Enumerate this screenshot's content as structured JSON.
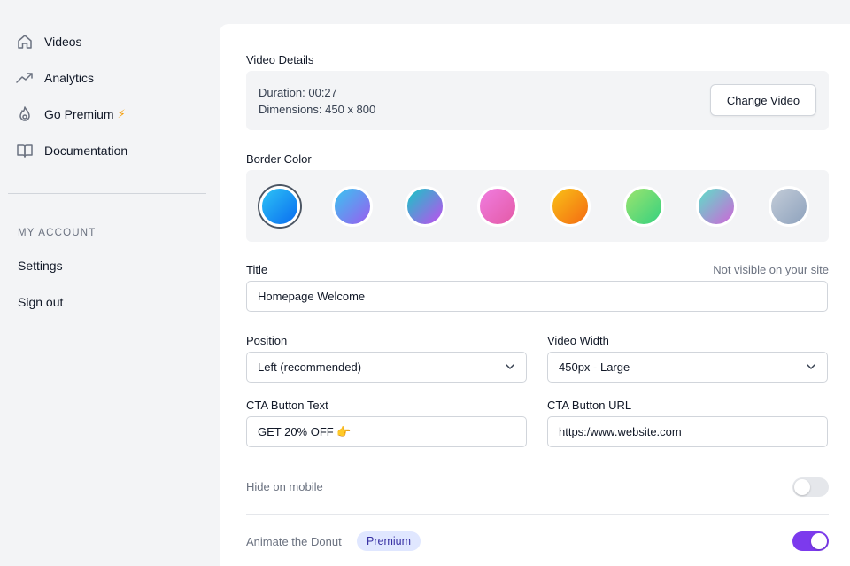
{
  "sidebar": {
    "nav": [
      {
        "label": "Videos",
        "icon": "home-icon"
      },
      {
        "label": "Analytics",
        "icon": "trending-up-icon"
      },
      {
        "label": "Go Premium",
        "icon": "fire-icon",
        "suffix": "⚡"
      },
      {
        "label": "Documentation",
        "icon": "book-icon"
      }
    ],
    "account_title": "MY ACCOUNT",
    "settings": "Settings",
    "signout": "Sign out"
  },
  "main": {
    "video_details": {
      "heading": "Video Details",
      "duration": "Duration: 00:27",
      "dimensions": "Dimensions: 450 x 800",
      "change_button": "Change Video"
    },
    "border_color": {
      "heading": "Border Color",
      "swatches": [
        {
          "name": "blue",
          "from": "#2dc3f5",
          "to": "#0a6cf0",
          "selected": true
        },
        {
          "name": "blue-violet",
          "from": "#38c5f0",
          "to": "#9b5cf0",
          "selected": false
        },
        {
          "name": "teal-purple",
          "from": "#14c8c4",
          "to": "#c24cf0",
          "selected": false
        },
        {
          "name": "pink",
          "from": "#f07de0",
          "to": "#e45aa6",
          "selected": false
        },
        {
          "name": "orange",
          "from": "#f9c117",
          "to": "#f46a12",
          "selected": false
        },
        {
          "name": "green",
          "from": "#9be46e",
          "to": "#36d17f",
          "selected": false
        },
        {
          "name": "teal-pink",
          "from": "#5ce0c8",
          "to": "#d064d8",
          "selected": false
        },
        {
          "name": "gray-blue",
          "from": "#c3ccd8",
          "to": "#8ea2bd",
          "selected": false
        }
      ]
    },
    "title": {
      "label": "Title",
      "hint": "Not visible on your site",
      "value": "Homepage Welcome"
    },
    "position": {
      "label": "Position",
      "value": "Left (recommended)"
    },
    "video_width": {
      "label": "Video Width",
      "value": "450px - Large"
    },
    "cta_text": {
      "label": "CTA Button Text",
      "value": "GET 20% OFF 👉"
    },
    "cta_url": {
      "label": "CTA Button URL",
      "value": "https:/www.website.com"
    },
    "hide_mobile": {
      "label": "Hide on mobile",
      "on": false
    },
    "animate_donut": {
      "label": "Animate the Donut",
      "badge": "Premium",
      "on": true
    }
  },
  "colors": {
    "toggle_on": "#7c3aed",
    "toggle_off": "#e5e7eb",
    "badge_bg": "#e0e7ff"
  }
}
